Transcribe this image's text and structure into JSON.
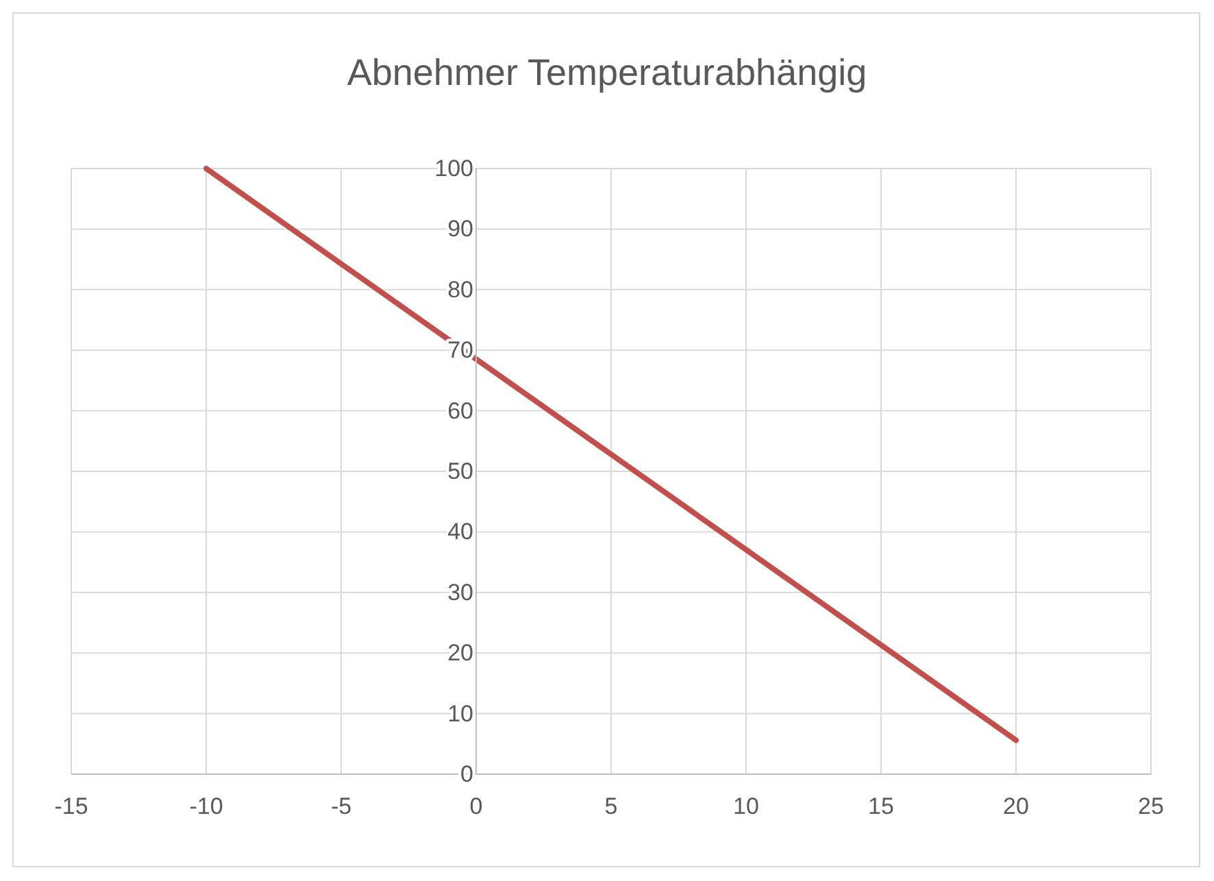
{
  "chart_data": {
    "type": "line",
    "title": "Abnehmer Temperaturabhängig",
    "series": [
      {
        "color": "#c0504d",
        "x": [
          -10,
          20
        ],
        "values": [
          100,
          5.6
        ]
      }
    ],
    "xlim": [
      -15,
      25
    ],
    "xticks": [
      -15,
      -10,
      -5,
      0,
      5,
      10,
      15,
      20,
      25
    ],
    "ylim": [
      0,
      100
    ],
    "yticks": [
      0,
      10,
      20,
      30,
      40,
      50,
      60,
      70,
      80,
      90,
      100
    ],
    "grid": true,
    "marker": "none",
    "line_style": "solid"
  }
}
